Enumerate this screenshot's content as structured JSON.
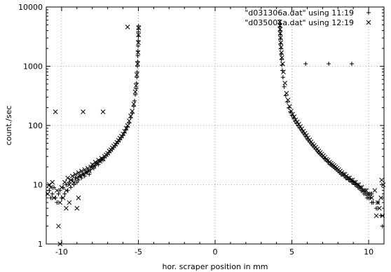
{
  "chart_data": {
    "type": "scatter",
    "title": "",
    "xlabel": "hor. scraper position in mm",
    "ylabel": "count./sec",
    "xlim": [
      -11,
      11
    ],
    "ylim": [
      1,
      10000
    ],
    "yscale": "log",
    "grid": true,
    "legend_position": "top-right",
    "x_ticks": [
      -10,
      -5,
      0,
      5,
      10
    ],
    "x_tick_labels": [
      "-10",
      "-5",
      "0",
      "5",
      "10"
    ],
    "y_ticks": [
      1,
      10,
      100,
      1000,
      10000
    ],
    "y_tick_labels": [
      "1",
      "10",
      "100",
      "1000",
      "10000"
    ],
    "series": [
      {
        "name": "\"d031306a.dat\" using 11:19",
        "marker": "plus",
        "points": [
          [
            -10.8,
            8
          ],
          [
            -10.7,
            6
          ],
          [
            -10.6,
            7
          ],
          [
            -10.5,
            9
          ],
          [
            -10.4,
            6
          ],
          [
            -10.3,
            5
          ],
          [
            -10.2,
            7
          ],
          [
            -10.1,
            8
          ],
          [
            -10.0,
            6
          ],
          [
            -9.9,
            9
          ],
          [
            -9.8,
            7
          ],
          [
            -9.7,
            10
          ],
          [
            -9.6,
            8
          ],
          [
            -9.5,
            11
          ],
          [
            -9.4,
            9
          ],
          [
            -9.3,
            12
          ],
          [
            -9.2,
            10
          ],
          [
            -9.1,
            13
          ],
          [
            -9.0,
            11
          ],
          [
            -8.9,
            12
          ],
          [
            -8.8,
            14
          ],
          [
            -8.7,
            13
          ],
          [
            -8.6,
            15
          ],
          [
            -8.5,
            14
          ],
          [
            -8.4,
            16
          ],
          [
            -8.3,
            17
          ],
          [
            -8.2,
            15
          ],
          [
            -8.1,
            18
          ],
          [
            -8.0,
            20
          ],
          [
            -7.9,
            19
          ],
          [
            -7.8,
            21
          ],
          [
            -7.7,
            23
          ],
          [
            -7.6,
            22
          ],
          [
            -7.5,
            25
          ],
          [
            -7.4,
            27
          ],
          [
            -7.3,
            26
          ],
          [
            -7.2,
            29
          ],
          [
            -7.1,
            31
          ],
          [
            -7.0,
            33
          ],
          [
            -6.9,
            35
          ],
          [
            -6.8,
            38
          ],
          [
            -6.7,
            40
          ],
          [
            -6.6,
            43
          ],
          [
            -6.5,
            46
          ],
          [
            -6.4,
            50
          ],
          [
            -6.3,
            54
          ],
          [
            -6.2,
            58
          ],
          [
            -6.1,
            63
          ],
          [
            -6.0,
            68
          ],
          [
            -5.9,
            75
          ],
          [
            -5.8,
            85
          ],
          [
            -5.7,
            95
          ],
          [
            -5.6,
            110
          ],
          [
            -5.5,
            135
          ],
          [
            -5.4,
            160
          ],
          [
            -5.3,
            210
          ],
          [
            -5.25,
            260
          ],
          [
            -5.2,
            330
          ],
          [
            -5.15,
            420
          ],
          [
            -5.12,
            520
          ],
          [
            -5.1,
            650
          ],
          [
            -5.08,
            800
          ],
          [
            -5.06,
            1000
          ],
          [
            -5.05,
            1200
          ],
          [
            -5.04,
            1500
          ],
          [
            -5.03,
            1800
          ],
          [
            -5.02,
            2200
          ],
          [
            -5.01,
            2700
          ],
          [
            -5.0,
            3200
          ],
          [
            -5.0,
            3800
          ],
          [
            -4.99,
            4300
          ],
          [
            -4.99,
            4800
          ],
          [
            4.22,
            5200
          ],
          [
            4.23,
            4600
          ],
          [
            4.24,
            4000
          ],
          [
            4.25,
            3400
          ],
          [
            4.26,
            2900
          ],
          [
            4.27,
            2400
          ],
          [
            4.28,
            2000
          ],
          [
            4.3,
            1600
          ],
          [
            4.32,
            1300
          ],
          [
            4.35,
            1050
          ],
          [
            4.38,
            850
          ],
          [
            4.42,
            650
          ],
          [
            4.5,
            450
          ],
          [
            4.6,
            320
          ],
          [
            4.7,
            250
          ],
          [
            4.8,
            200
          ],
          [
            4.9,
            170
          ],
          [
            5.0,
            150
          ],
          [
            5.1,
            135
          ],
          [
            5.2,
            120
          ],
          [
            5.3,
            110
          ],
          [
            5.4,
            100
          ],
          [
            5.5,
            92
          ],
          [
            5.6,
            85
          ],
          [
            5.7,
            78
          ],
          [
            5.8,
            72
          ],
          [
            5.9,
            66
          ],
          [
            6.0,
            60
          ],
          [
            6.1,
            56
          ],
          [
            6.2,
            52
          ],
          [
            6.3,
            48
          ],
          [
            6.4,
            45
          ],
          [
            6.5,
            42
          ],
          [
            6.6,
            39
          ],
          [
            6.7,
            36
          ],
          [
            6.8,
            34
          ],
          [
            6.9,
            32
          ],
          [
            7.0,
            30
          ],
          [
            7.1,
            28
          ],
          [
            7.2,
            27
          ],
          [
            7.3,
            25
          ],
          [
            7.4,
            24
          ],
          [
            7.5,
            22
          ],
          [
            7.6,
            21
          ],
          [
            7.7,
            20
          ],
          [
            7.8,
            19
          ],
          [
            7.9,
            18
          ],
          [
            8.0,
            17
          ],
          [
            8.1,
            16
          ],
          [
            8.2,
            15
          ],
          [
            8.3,
            15
          ],
          [
            8.4,
            14
          ],
          [
            8.5,
            13
          ],
          [
            8.6,
            13
          ],
          [
            8.7,
            12
          ],
          [
            8.8,
            12
          ],
          [
            8.9,
            11
          ],
          [
            9.0,
            11
          ],
          [
            9.1,
            10
          ],
          [
            9.2,
            10
          ],
          [
            9.3,
            9
          ],
          [
            9.4,
            9
          ],
          [
            9.5,
            8
          ],
          [
            9.6,
            8
          ],
          [
            9.7,
            7
          ],
          [
            9.8,
            7
          ],
          [
            9.9,
            6
          ],
          [
            10.0,
            6
          ],
          [
            10.1,
            6
          ],
          [
            10.2,
            5
          ],
          [
            10.3,
            5
          ],
          [
            10.5,
            4
          ],
          [
            10.8,
            3
          ],
          [
            5.9,
            1100
          ],
          [
            7.4,
            1100
          ],
          [
            8.9,
            1100
          ],
          [
            10.0,
            6
          ],
          [
            10.2,
            7
          ],
          [
            10.6,
            5
          ],
          [
            10.9,
            2
          ]
        ]
      },
      {
        "name": "\"d035001a.dat\" using 12:19",
        "marker": "cross",
        "points": [
          [
            -10.9,
            7
          ],
          [
            -10.7,
            9
          ],
          [
            -10.5,
            6
          ],
          [
            -10.3,
            8
          ],
          [
            -10.1,
            5
          ],
          [
            -10.0,
            9
          ],
          [
            -9.9,
            6
          ],
          [
            -9.8,
            11
          ],
          [
            -9.7,
            8
          ],
          [
            -9.6,
            13
          ],
          [
            -9.5,
            10
          ],
          [
            -9.4,
            12
          ],
          [
            -9.3,
            14
          ],
          [
            -9.2,
            11
          ],
          [
            -9.1,
            15
          ],
          [
            -9.0,
            13
          ],
          [
            -8.9,
            16
          ],
          [
            -8.8,
            14
          ],
          [
            -8.7,
            17
          ],
          [
            -8.6,
            15
          ],
          [
            -8.5,
            18
          ],
          [
            -8.4,
            16
          ],
          [
            -8.3,
            19
          ],
          [
            -8.2,
            17
          ],
          [
            -8.1,
            20
          ],
          [
            -8.0,
            22
          ],
          [
            -7.9,
            21
          ],
          [
            -7.8,
            24
          ],
          [
            -7.7,
            23
          ],
          [
            -7.6,
            26
          ],
          [
            -7.5,
            25
          ],
          [
            -7.4,
            28
          ],
          [
            -7.3,
            27
          ],
          [
            -7.2,
            30
          ],
          [
            -7.1,
            32
          ],
          [
            -7.0,
            34
          ],
          [
            -6.9,
            37
          ],
          [
            -6.8,
            39
          ],
          [
            -6.7,
            42
          ],
          [
            -6.6,
            45
          ],
          [
            -6.5,
            48
          ],
          [
            -6.4,
            52
          ],
          [
            -6.3,
            56
          ],
          [
            -6.2,
            61
          ],
          [
            -6.1,
            66
          ],
          [
            -6.0,
            72
          ],
          [
            -5.9,
            80
          ],
          [
            -5.8,
            90
          ],
          [
            -5.7,
            100
          ],
          [
            -5.6,
            120
          ],
          [
            -5.5,
            145
          ],
          [
            -5.4,
            175
          ],
          [
            -5.3,
            230
          ],
          [
            -5.2,
            370
          ],
          [
            -5.15,
            470
          ],
          [
            -5.1,
            720
          ],
          [
            -5.05,
            1100
          ],
          [
            -5.02,
            1700
          ],
          [
            -5.0,
            2500
          ],
          [
            -4.99,
            3400
          ],
          [
            -4.98,
            4400
          ],
          [
            -5.7,
            4600
          ],
          [
            -10.4,
            170
          ],
          [
            -8.6,
            170
          ],
          [
            -7.3,
            170
          ],
          [
            -10.2,
            2
          ],
          [
            -10.1,
            1
          ],
          [
            -9.7,
            4
          ],
          [
            -9.5,
            5
          ],
          [
            -9.0,
            4
          ],
          [
            -8.9,
            6
          ],
          [
            -10.8,
            10
          ],
          [
            -10.6,
            11
          ],
          [
            4.21,
            5600
          ],
          [
            4.22,
            4900
          ],
          [
            4.23,
            4200
          ],
          [
            4.24,
            3600
          ],
          [
            4.26,
            3000
          ],
          [
            4.28,
            2500
          ],
          [
            4.3,
            2100
          ],
          [
            4.32,
            1700
          ],
          [
            4.35,
            1400
          ],
          [
            4.4,
            1100
          ],
          [
            4.45,
            800
          ],
          [
            4.55,
            520
          ],
          [
            4.65,
            350
          ],
          [
            4.75,
            270
          ],
          [
            4.85,
            210
          ],
          [
            4.95,
            175
          ],
          [
            5.05,
            155
          ],
          [
            5.15,
            140
          ],
          [
            5.25,
            125
          ],
          [
            5.35,
            115
          ],
          [
            5.45,
            105
          ],
          [
            5.55,
            96
          ],
          [
            5.65,
            88
          ],
          [
            5.75,
            80
          ],
          [
            5.85,
            74
          ],
          [
            5.95,
            68
          ],
          [
            6.05,
            62
          ],
          [
            6.15,
            57
          ],
          [
            6.25,
            53
          ],
          [
            6.35,
            49
          ],
          [
            6.45,
            46
          ],
          [
            6.55,
            43
          ],
          [
            6.65,
            40
          ],
          [
            6.75,
            37
          ],
          [
            6.85,
            35
          ],
          [
            6.95,
            33
          ],
          [
            7.05,
            31
          ],
          [
            7.15,
            29
          ],
          [
            7.25,
            27
          ],
          [
            7.35,
            26
          ],
          [
            7.45,
            24
          ],
          [
            7.55,
            23
          ],
          [
            7.65,
            22
          ],
          [
            7.75,
            21
          ],
          [
            7.85,
            20
          ],
          [
            7.95,
            19
          ],
          [
            8.05,
            18
          ],
          [
            8.15,
            17
          ],
          [
            8.25,
            16
          ],
          [
            8.35,
            15
          ],
          [
            8.45,
            15
          ],
          [
            8.55,
            14
          ],
          [
            8.65,
            13
          ],
          [
            8.75,
            13
          ],
          [
            8.85,
            12
          ],
          [
            8.95,
            12
          ],
          [
            9.05,
            11
          ],
          [
            9.15,
            11
          ],
          [
            9.25,
            10
          ],
          [
            9.35,
            10
          ],
          [
            9.45,
            9
          ],
          [
            9.55,
            9
          ],
          [
            9.65,
            8
          ],
          [
            9.75,
            8
          ],
          [
            9.85,
            8
          ],
          [
            9.95,
            7
          ],
          [
            10.05,
            7
          ],
          [
            10.2,
            6
          ],
          [
            10.4,
            8
          ],
          [
            10.6,
            5
          ],
          [
            10.7,
            4
          ],
          [
            10.8,
            6
          ],
          [
            10.9,
            3
          ],
          [
            10.95,
            10
          ],
          [
            10.85,
            12
          ],
          [
            10.5,
            3
          ]
        ]
      }
    ]
  }
}
